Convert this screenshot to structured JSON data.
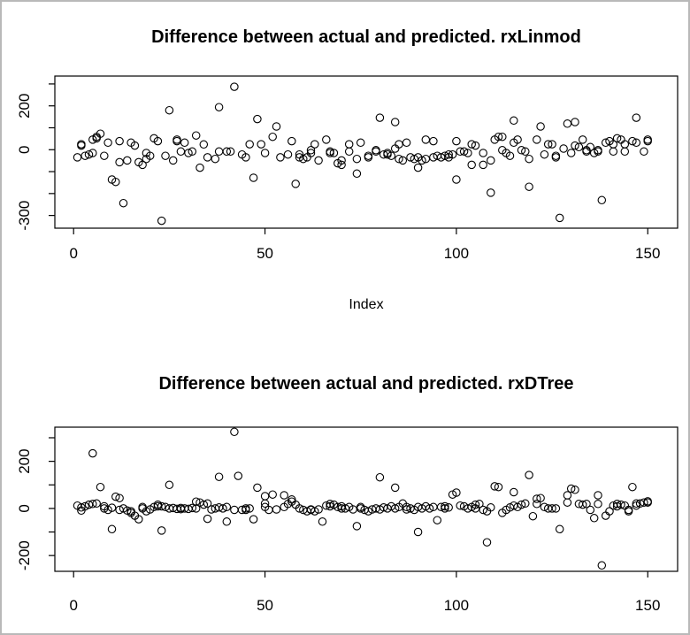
{
  "figure": {
    "background": "#ffffff",
    "border_color": "#b9b9b9",
    "axis_color": "#000000",
    "marker_color": "#000000",
    "marker": "open-circle"
  },
  "chart_data": [
    {
      "type": "scatter",
      "title": "Difference between actual and predicted. rxLinmod",
      "xlabel": "Index",
      "ylabel": "",
      "grid": false,
      "legend": null,
      "xlim": [
        -4.9,
        157.8
      ],
      "ylim": [
        -358,
        336
      ],
      "x_ticks": [
        {
          "value": 0,
          "text": "0"
        },
        {
          "value": 50,
          "text": "50"
        },
        {
          "value": 100,
          "text": "100"
        },
        {
          "value": 150,
          "text": "150"
        }
      ],
      "y_ticks": [
        300,
        200,
        100,
        0,
        -100,
        -200,
        -300
      ],
      "y_tick_labels": [
        {
          "value": 200,
          "text": "200"
        },
        {
          "value": 0,
          "text": "0"
        },
        {
          "value": -300,
          "text": "-300"
        }
      ],
      "points": [
        [
          1,
          -35
        ],
        [
          2,
          19
        ],
        [
          2,
          25
        ],
        [
          3,
          -28
        ],
        [
          4,
          -22
        ],
        [
          5,
          -15
        ],
        [
          5,
          46
        ],
        [
          6,
          52
        ],
        [
          6,
          59
        ],
        [
          7,
          73
        ],
        [
          8,
          -28
        ],
        [
          9,
          32
        ],
        [
          10,
          -136
        ],
        [
          11,
          -147
        ],
        [
          12,
          39
        ],
        [
          12,
          -57
        ],
        [
          13,
          -244
        ],
        [
          14,
          -49
        ],
        [
          15,
          32
        ],
        [
          16,
          19
        ],
        [
          17,
          -57
        ],
        [
          18,
          -69
        ],
        [
          19,
          -15
        ],
        [
          19,
          -42
        ],
        [
          20,
          -28
        ],
        [
          21,
          52
        ],
        [
          22,
          39
        ],
        [
          23,
          -324
        ],
        [
          24,
          -28
        ],
        [
          25,
          180
        ],
        [
          26,
          -49
        ],
        [
          27,
          39
        ],
        [
          27,
          46
        ],
        [
          28,
          -8
        ],
        [
          29,
          32
        ],
        [
          30,
          -15
        ],
        [
          31,
          -8
        ],
        [
          32,
          65
        ],
        [
          33,
          -82
        ],
        [
          34,
          24
        ],
        [
          35,
          -35
        ],
        [
          37,
          -42
        ],
        [
          38,
          -8
        ],
        [
          38,
          194
        ],
        [
          40,
          -8
        ],
        [
          41,
          -8
        ],
        [
          42,
          287
        ],
        [
          44,
          -22
        ],
        [
          45,
          -35
        ],
        [
          46,
          25
        ],
        [
          47,
          -128
        ],
        [
          48,
          140
        ],
        [
          49,
          25
        ],
        [
          50,
          -15
        ],
        [
          52,
          59
        ],
        [
          53,
          106
        ],
        [
          54,
          -35
        ],
        [
          56,
          -22
        ],
        [
          57,
          39
        ],
        [
          58,
          -156
        ],
        [
          59,
          -22
        ],
        [
          59,
          -35
        ],
        [
          60,
          -42
        ],
        [
          61,
          -35
        ],
        [
          62,
          -15
        ],
        [
          62,
          -2
        ],
        [
          63,
          25
        ],
        [
          64,
          -49
        ],
        [
          66,
          46
        ],
        [
          67,
          -8
        ],
        [
          67,
          -15
        ],
        [
          68,
          -15
        ],
        [
          69,
          -62
        ],
        [
          70,
          -69
        ],
        [
          70,
          -49
        ],
        [
          72,
          -8
        ],
        [
          72,
          25
        ],
        [
          74,
          -109
        ],
        [
          74,
          -42
        ],
        [
          75,
          32
        ],
        [
          77,
          -28
        ],
        [
          77,
          -35
        ],
        [
          79,
          -2
        ],
        [
          79,
          -8
        ],
        [
          80,
          146
        ],
        [
          81,
          -22
        ],
        [
          82,
          -15
        ],
        [
          82,
          -22
        ],
        [
          83,
          -28
        ],
        [
          84,
          126
        ],
        [
          84,
          5
        ],
        [
          85,
          25
        ],
        [
          85,
          -42
        ],
        [
          86,
          -49
        ],
        [
          87,
          32
        ],
        [
          88,
          -35
        ],
        [
          89,
          -42
        ],
        [
          90,
          -82
        ],
        [
          90,
          -35
        ],
        [
          91,
          -49
        ],
        [
          92,
          -42
        ],
        [
          92,
          46
        ],
        [
          94,
          39
        ],
        [
          94,
          -35
        ],
        [
          95,
          -28
        ],
        [
          96,
          -35
        ],
        [
          97,
          -28
        ],
        [
          98,
          -35
        ],
        [
          98,
          -22
        ],
        [
          99,
          -22
        ],
        [
          100,
          39
        ],
        [
          100,
          -136
        ],
        [
          101,
          -8
        ],
        [
          102,
          -8
        ],
        [
          103,
          -15
        ],
        [
          104,
          -69
        ],
        [
          104,
          25
        ],
        [
          105,
          19
        ],
        [
          107,
          -15
        ],
        [
          107,
          -69
        ],
        [
          109,
          -49
        ],
        [
          109,
          -196
        ],
        [
          110,
          46
        ],
        [
          111,
          59
        ],
        [
          112,
          59
        ],
        [
          112,
          -2
        ],
        [
          113,
          -15
        ],
        [
          114,
          -28
        ],
        [
          115,
          133
        ],
        [
          115,
          32
        ],
        [
          116,
          46
        ],
        [
          117,
          -2
        ],
        [
          118,
          -8
        ],
        [
          119,
          -42
        ],
        [
          119,
          -169
        ],
        [
          121,
          46
        ],
        [
          122,
          106
        ],
        [
          123,
          -22
        ],
        [
          124,
          25
        ],
        [
          125,
          25
        ],
        [
          126,
          -28
        ],
        [
          126,
          -35
        ],
        [
          127,
          -311
        ],
        [
          128,
          5
        ],
        [
          129,
          119
        ],
        [
          130,
          -15
        ],
        [
          131,
          126
        ],
        [
          131,
          19
        ],
        [
          132,
          12
        ],
        [
          133,
          46
        ],
        [
          134,
          -8
        ],
        [
          134,
          -2
        ],
        [
          135,
          12
        ],
        [
          136,
          -15
        ],
        [
          137,
          -8
        ],
        [
          137,
          -2
        ],
        [
          138,
          -230
        ],
        [
          139,
          32
        ],
        [
          140,
          39
        ],
        [
          141,
          25
        ],
        [
          141,
          -8
        ],
        [
          142,
          52
        ],
        [
          143,
          46
        ],
        [
          144,
          -8
        ],
        [
          144,
          25
        ],
        [
          146,
          39
        ],
        [
          147,
          146
        ],
        [
          147,
          32
        ],
        [
          149,
          -8
        ],
        [
          150,
          46
        ],
        [
          150,
          39
        ]
      ]
    },
    {
      "type": "scatter",
      "title": "Difference between actual and predicted. rxDTree",
      "xlabel": "",
      "ylabel": "",
      "grid": false,
      "legend": null,
      "xlim": [
        -4.9,
        157.8
      ],
      "ylim": [
        -267,
        345
      ],
      "x_ticks": [
        {
          "value": 0,
          "text": "0"
        },
        {
          "value": 50,
          "text": "50"
        },
        {
          "value": 100,
          "text": "100"
        },
        {
          "value": 150,
          "text": "150"
        }
      ],
      "y_ticks": [
        300,
        200,
        100,
        0,
        -100,
        -200
      ],
      "y_tick_labels": [
        {
          "value": 200,
          "text": "200"
        },
        {
          "value": 0,
          "text": "0"
        },
        {
          "value": -200,
          "text": "-200"
        }
      ],
      "points": [
        [
          1,
          12
        ],
        [
          2,
          4
        ],
        [
          2,
          -9
        ],
        [
          3,
          9
        ],
        [
          4,
          16
        ],
        [
          5,
          234
        ],
        [
          5,
          19
        ],
        [
          6,
          21
        ],
        [
          7,
          91
        ],
        [
          8,
          0
        ],
        [
          8,
          9
        ],
        [
          9,
          -6
        ],
        [
          10,
          3
        ],
        [
          10,
          -88
        ],
        [
          11,
          50
        ],
        [
          12,
          44
        ],
        [
          12,
          -6
        ],
        [
          13,
          0
        ],
        [
          14,
          -9
        ],
        [
          15,
          -19
        ],
        [
          15,
          -12
        ],
        [
          16,
          -31
        ],
        [
          17,
          -46
        ],
        [
          18,
          6
        ],
        [
          18,
          0
        ],
        [
          19,
          -12
        ],
        [
          20,
          -4
        ],
        [
          21,
          6
        ],
        [
          22,
          9
        ],
        [
          22,
          16
        ],
        [
          23,
          9
        ],
        [
          23,
          -94
        ],
        [
          24,
          6
        ],
        [
          25,
          100
        ],
        [
          25,
          0
        ],
        [
          26,
          2
        ],
        [
          27,
          -2
        ],
        [
          28,
          2
        ],
        [
          28,
          -3
        ],
        [
          29,
          0
        ],
        [
          30,
          -2
        ],
        [
          31,
          2
        ],
        [
          32,
          0
        ],
        [
          32,
          29
        ],
        [
          33,
          25
        ],
        [
          34,
          16
        ],
        [
          35,
          21
        ],
        [
          35,
          -44
        ],
        [
          36,
          -4
        ],
        [
          37,
          0
        ],
        [
          38,
          134
        ],
        [
          38,
          4
        ],
        [
          39,
          0
        ],
        [
          40,
          -56
        ],
        [
          40,
          6
        ],
        [
          42,
          325
        ],
        [
          42,
          -6
        ],
        [
          43,
          138
        ],
        [
          44,
          -6
        ],
        [
          45,
          0
        ],
        [
          45,
          -6
        ],
        [
          46,
          0
        ],
        [
          47,
          -46
        ],
        [
          48,
          88
        ],
        [
          50,
          21
        ],
        [
          50,
          52
        ],
        [
          50,
          6
        ],
        [
          51,
          -6
        ],
        [
          52,
          59
        ],
        [
          53,
          -4
        ],
        [
          55,
          56
        ],
        [
          55,
          6
        ],
        [
          56,
          19
        ],
        [
          57,
          29
        ],
        [
          57,
          38
        ],
        [
          58,
          16
        ],
        [
          59,
          0
        ],
        [
          60,
          -6
        ],
        [
          61,
          -12
        ],
        [
          62,
          -4
        ],
        [
          62,
          -6
        ],
        [
          63,
          -12
        ],
        [
          64,
          -4
        ],
        [
          65,
          -56
        ],
        [
          66,
          12
        ],
        [
          67,
          19
        ],
        [
          67,
          9
        ],
        [
          68,
          16
        ],
        [
          69,
          6
        ],
        [
          70,
          0
        ],
        [
          70,
          9
        ],
        [
          71,
          0
        ],
        [
          72,
          6
        ],
        [
          73,
          -4
        ],
        [
          74,
          -75
        ],
        [
          75,
          6
        ],
        [
          75,
          0
        ],
        [
          76,
          -6
        ],
        [
          77,
          -12
        ],
        [
          78,
          -4
        ],
        [
          79,
          0
        ],
        [
          80,
          132
        ],
        [
          80,
          -4
        ],
        [
          81,
          4
        ],
        [
          82,
          0
        ],
        [
          83,
          9
        ],
        [
          84,
          88
        ],
        [
          84,
          0
        ],
        [
          85,
          6
        ],
        [
          86,
          21
        ],
        [
          87,
          6
        ],
        [
          87,
          -4
        ],
        [
          88,
          0
        ],
        [
          89,
          -6
        ],
        [
          90,
          -100
        ],
        [
          90,
          6
        ],
        [
          91,
          0
        ],
        [
          92,
          9
        ],
        [
          93,
          0
        ],
        [
          94,
          6
        ],
        [
          95,
          -50
        ],
        [
          96,
          6
        ],
        [
          97,
          0
        ],
        [
          97,
          9
        ],
        [
          98,
          4
        ],
        [
          99,
          59
        ],
        [
          100,
          67
        ],
        [
          101,
          12
        ],
        [
          102,
          9
        ],
        [
          103,
          0
        ],
        [
          104,
          6
        ],
        [
          105,
          0
        ],
        [
          105,
          16
        ],
        [
          106,
          19
        ],
        [
          107,
          -6
        ],
        [
          108,
          -12
        ],
        [
          108,
          -144
        ],
        [
          109,
          4
        ],
        [
          110,
          94
        ],
        [
          111,
          91
        ],
        [
          112,
          -19
        ],
        [
          113,
          -6
        ],
        [
          114,
          4
        ],
        [
          115,
          69
        ],
        [
          115,
          12
        ],
        [
          116,
          6
        ],
        [
          117,
          16
        ],
        [
          118,
          21
        ],
        [
          119,
          142
        ],
        [
          120,
          -33
        ],
        [
          121,
          19
        ],
        [
          121,
          41
        ],
        [
          122,
          44
        ],
        [
          123,
          6
        ],
        [
          124,
          0
        ],
        [
          125,
          0
        ],
        [
          126,
          0
        ],
        [
          127,
          -88
        ],
        [
          129,
          25
        ],
        [
          129,
          56
        ],
        [
          130,
          84
        ],
        [
          131,
          79
        ],
        [
          132,
          19
        ],
        [
          133,
          16
        ],
        [
          134,
          19
        ],
        [
          135,
          -6
        ],
        [
          136,
          -41
        ],
        [
          137,
          56
        ],
        [
          137,
          19
        ],
        [
          138,
          -242
        ],
        [
          139,
          -31
        ],
        [
          140,
          -12
        ],
        [
          141,
          12
        ],
        [
          142,
          9
        ],
        [
          142,
          19
        ],
        [
          143,
          16
        ],
        [
          144,
          12
        ],
        [
          145,
          -12
        ],
        [
          145,
          -6
        ],
        [
          146,
          91
        ],
        [
          147,
          12
        ],
        [
          147,
          21
        ],
        [
          148,
          21
        ],
        [
          149,
          25
        ],
        [
          150,
          25
        ],
        [
          150,
          30
        ]
      ]
    }
  ]
}
